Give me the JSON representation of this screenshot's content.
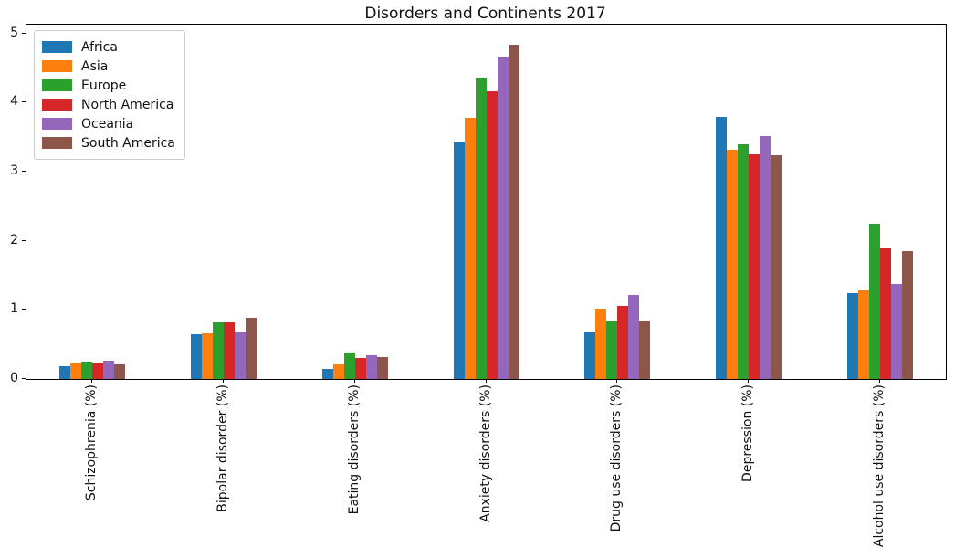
{
  "chart_data": {
    "type": "bar",
    "title": "Disorders and Continents 2017",
    "xlabel": "",
    "ylabel": "",
    "grid": false,
    "legend_position": "upper left",
    "ylim": [
      0,
      5.13
    ],
    "yticks": [
      0,
      1,
      2,
      3,
      4,
      5
    ],
    "categories": [
      "Schizophrenia (%)",
      "Bipolar disorder (%)",
      "Eating disorders (%)",
      "Anxiety disorders (%)",
      "Drug use disorders (%)",
      "Depression (%)",
      "Alcohol use disorders (%)"
    ],
    "series": [
      {
        "name": "Africa",
        "color": "#1f77b4",
        "values": [
          0.18,
          0.65,
          0.15,
          3.44,
          0.69,
          3.79,
          1.24
        ]
      },
      {
        "name": "Asia",
        "color": "#ff7f0e",
        "values": [
          0.24,
          0.66,
          0.21,
          3.78,
          1.02,
          3.31,
          1.28
        ]
      },
      {
        "name": "Europe",
        "color": "#2ca02c",
        "values": [
          0.25,
          0.82,
          0.38,
          4.36,
          0.83,
          3.4,
          2.24
        ]
      },
      {
        "name": "North America",
        "color": "#d62728",
        "values": [
          0.24,
          0.82,
          0.31,
          4.16,
          1.06,
          3.25,
          1.89
        ]
      },
      {
        "name": "Oceania",
        "color": "#9467bd",
        "values": [
          0.27,
          0.68,
          0.34,
          4.66,
          1.21,
          3.52,
          1.38
        ]
      },
      {
        "name": "South America",
        "color": "#8c564b",
        "values": [
          0.21,
          0.88,
          0.32,
          4.84,
          0.84,
          3.23,
          1.85
        ]
      }
    ]
  }
}
